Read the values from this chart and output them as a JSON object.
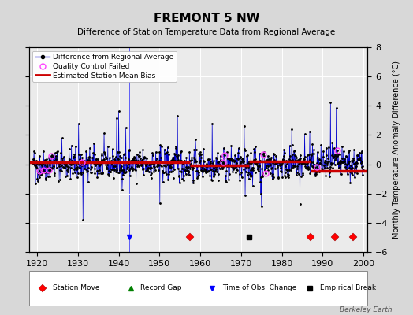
{
  "title": "FREMONT 5 NW",
  "subtitle": "Difference of Station Temperature Data from Regional Average",
  "ylabel": "Monthly Temperature Anomaly Difference (°C)",
  "xlim": [
    1918,
    2001
  ],
  "ylim": [
    -6,
    8
  ],
  "yticks": [
    -6,
    -4,
    -2,
    0,
    2,
    4,
    6,
    8
  ],
  "xticks": [
    1920,
    1930,
    1940,
    1950,
    1960,
    1970,
    1980,
    1990,
    2000
  ],
  "bg_color": "#d8d8d8",
  "plot_bg_color": "#ebebeb",
  "seed": 42,
  "station_moves": [
    1957.5,
    1987.0,
    1993.0,
    1997.5
  ],
  "record_gaps": [],
  "obs_changes": [
    1942.5
  ],
  "empirical_breaks": [
    1972.0
  ],
  "bias_segments": [
    {
      "x_start": 1918,
      "x_end": 1957.5,
      "bias": 0.12
    },
    {
      "x_start": 1957.5,
      "x_end": 1972.0,
      "bias": -0.08
    },
    {
      "x_start": 1972.0,
      "x_end": 1987.0,
      "bias": 0.18
    },
    {
      "x_start": 1987.0,
      "x_end": 2001,
      "bias": -0.48
    }
  ],
  "qc_failed_approx": [
    1920.5,
    1921.5,
    1922.8,
    1923.5,
    1931.0,
    1965.5,
    1966.0,
    1975.5,
    1976.0,
    1988.5,
    1993.5
  ],
  "line_color": "#0000cc",
  "dot_color": "#000000",
  "bias_color": "#cc0000",
  "qc_color": "#ff44ff",
  "watermark": "Berkeley Earth"
}
